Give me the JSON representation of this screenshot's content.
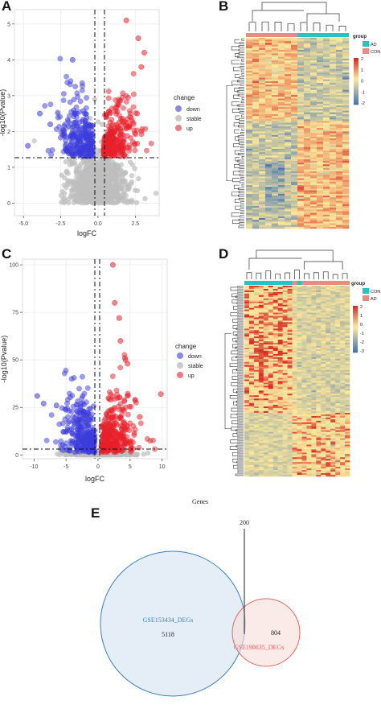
{
  "panels": {
    "A": {
      "letter": "A",
      "xlabel": "logFC",
      "ylabel": "-log10(Pvalue)",
      "xticks": [
        "-5.0",
        "-2.5",
        "0.0",
        "2.5"
      ],
      "yticks": [
        "0",
        "1",
        "2",
        "3",
        "4",
        "5"
      ],
      "legend_title": "change",
      "legend_items": [
        "down",
        "stable",
        "up"
      ]
    },
    "B": {
      "letter": "B",
      "legend_title": "group",
      "legend_groups": [
        "AD",
        "CON"
      ],
      "scale_ticks": [
        "2",
        "1",
        "0",
        "-1",
        "-2"
      ]
    },
    "C": {
      "letter": "C",
      "xlabel": "logFC",
      "ylabel": "-log10(Pvalue)",
      "xticks": [
        "-10",
        "-5",
        "0",
        "5",
        "10"
      ],
      "yticks": [
        "0",
        "25",
        "50",
        "75",
        "100"
      ],
      "legend_title": "change",
      "legend_items": [
        "down",
        "stable",
        "up"
      ]
    },
    "D": {
      "letter": "D",
      "legend_title": "group",
      "legend_groups": [
        "CON",
        "AD"
      ],
      "scale_ticks": [
        "2",
        "1",
        "0",
        "-1",
        "-2",
        "-3"
      ],
      "xlabel": "Genes"
    },
    "E": {
      "letter": "E",
      "set1_label": "GSE153434_DEGs",
      "set1_count": "5118",
      "set2_label": "GSE190635_DEGs",
      "set2_count": "804",
      "overlap_count": "200"
    }
  },
  "colors": {
    "down": "#3b3bdc",
    "stable": "#bdbdbd",
    "up": "#e8202a",
    "heat_high": "#d73027",
    "heat_mid": "#fee99b",
    "heat_low": "#4575b4",
    "group_ad": "#e98a83",
    "group_con": "#25c4c4",
    "venn_blue": "#3b7fc4",
    "venn_red": "#e8665c"
  }
}
